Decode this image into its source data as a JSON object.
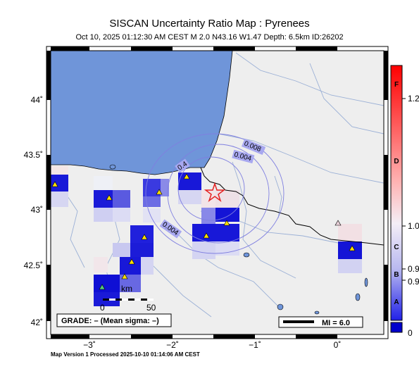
{
  "title": "SISCAN Uncertainty Ratio Map : Pyrenees",
  "subtitle": "Oct 10, 2025 01:12:30 AM CEST   M 2.0    N43.16 W1.47    Depth: 6.5km    ID:26202",
  "footer": "Map Version 1 Processed 2025-10-10 01:14:06 AM CEST",
  "map": {
    "lat_labels": [
      "44˚",
      "43.5˚",
      "43˚",
      "42.5˚",
      "42˚"
    ],
    "lon_labels": [
      "−3˚",
      "−2˚",
      "−1˚",
      "0˚"
    ],
    "contour_labels": [
      "0.004",
      "0.008",
      "0.4",
      "0.004"
    ],
    "scale_label": "km",
    "scale_ticks": [
      "0",
      "50"
    ],
    "grade_text": "GRADE: – (Mean sigma: –)",
    "mi_legend": "MI = 6.0",
    "colors": {
      "ocean": "#6f95d9",
      "land": "#eeeeee",
      "river": "#9bb0d6",
      "epicenter": "#e52222",
      "station": "#ffe000"
    }
  },
  "colorbar": {
    "grades": [
      "F",
      "D",
      "C",
      "B",
      "A"
    ],
    "values": [
      "1.2",
      "1.0",
      "0.9",
      "0.9",
      "0"
    ],
    "colors": {
      "top": "#ff0000",
      "middle": "#f0e8ff",
      "bottom": "#0000ff"
    }
  }
}
